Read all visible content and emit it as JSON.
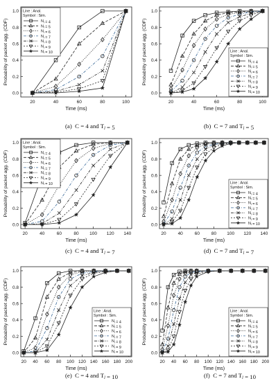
{
  "chart_data": [
    {
      "type": "line",
      "caption": {
        "prefix": "(a)",
        "text": "C = 4 and T_l = 5"
      },
      "ylabel": "Probability of packet agg. (CDF)",
      "xlabel": "Time (ms)",
      "xlim": [
        10,
        105
      ],
      "ylim": [
        -0.05,
        1.05
      ],
      "xticks": [
        20,
        40,
        60,
        80,
        100
      ],
      "yticks": [
        0.0,
        0.2,
        0.4,
        0.6,
        0.8,
        1.0
      ],
      "legend": {
        "line_label": "Line : Anal.",
        "symbol_label": "Symbol : Sim.",
        "position": "top-left"
      },
      "x": [
        20,
        40,
        60,
        80,
        100
      ],
      "series": [
        {
          "name": "N_l = 4",
          "marker": "square",
          "dash": "solid",
          "values": [
            0.0,
            0.4,
            0.8,
            1.0,
            1.0
          ]
        },
        {
          "name": "N_l = 5",
          "marker": "triangle",
          "dash": "dashed",
          "values": [
            0.0,
            0.17,
            0.6,
            0.85,
            1.0
          ]
        },
        {
          "name": "N_l = 6",
          "marker": "diamond",
          "dash": "dotted",
          "values": [
            0.0,
            0.08,
            0.35,
            0.65,
            1.0
          ]
        },
        {
          "name": "N_l = 7",
          "marker": "circle",
          "dash": "dashdot",
          "values": [
            0.0,
            0.04,
            0.2,
            0.45,
            1.0
          ]
        },
        {
          "name": "N_l = 8",
          "marker": "x",
          "dash": "dashdotdot",
          "values": [
            0.0,
            0.02,
            0.1,
            0.27,
            1.0
          ]
        },
        {
          "name": "N_l = 9",
          "marker": "nabla",
          "dash": "shortdash",
          "values": [
            0.0,
            0.01,
            0.05,
            0.15,
            1.0
          ]
        },
        {
          "name": "N_l = 10",
          "marker": "star",
          "dash": "solid",
          "values": [
            0.0,
            0.0,
            0.02,
            0.06,
            1.0
          ]
        }
      ]
    },
    {
      "type": "line",
      "caption": {
        "prefix": "(b)",
        "text": "C = 7 and T_l = 5"
      },
      "ylabel": "Probability of packet agg. (CDF)",
      "xlabel": "Time (ms)",
      "xlim": [
        10,
        105
      ],
      "ylim": [
        -0.05,
        1.05
      ],
      "xticks": [
        20,
        40,
        60,
        80,
        100
      ],
      "yticks": [
        0.0,
        0.2,
        0.4,
        0.6,
        0.8,
        1.0
      ],
      "legend": {
        "line_label": "Line : Anal.",
        "symbol_label": "Symbol : Sim.",
        "position": "bottom-right"
      },
      "x": [
        20,
        30,
        40,
        50,
        60,
        70,
        80,
        90,
        100
      ],
      "series": [
        {
          "name": "N_l = 4",
          "marker": "square",
          "dash": "solid",
          "values": [
            0.27,
            0.7,
            0.88,
            0.95,
            0.98,
            0.99,
            1.0,
            1.0,
            1.0
          ]
        },
        {
          "name": "N_l = 5",
          "marker": "triangle",
          "dash": "dashed",
          "values": [
            0.1,
            0.45,
            0.72,
            0.88,
            0.95,
            0.98,
            0.99,
            1.0,
            1.0
          ]
        },
        {
          "name": "N_l = 6",
          "marker": "diamond",
          "dash": "dotted",
          "values": [
            0.05,
            0.28,
            0.58,
            0.78,
            0.9,
            0.96,
            0.98,
            0.99,
            1.0
          ]
        },
        {
          "name": "N_l = 7",
          "marker": "circle",
          "dash": "dashdot",
          "values": [
            0.02,
            0.15,
            0.4,
            0.66,
            0.82,
            0.92,
            0.96,
            0.99,
            1.0
          ]
        },
        {
          "name": "N_l = 8",
          "marker": "x",
          "dash": "dashdotdot",
          "values": [
            0.0,
            0.07,
            0.25,
            0.5,
            0.72,
            0.86,
            0.93,
            0.97,
            1.0
          ]
        },
        {
          "name": "N_l = 9",
          "marker": "nabla",
          "dash": "shortdash",
          "values": [
            0.0,
            0.03,
            0.12,
            0.32,
            0.55,
            0.75,
            0.88,
            0.95,
            1.0
          ]
        },
        {
          "name": "N_l = 10",
          "marker": "star",
          "dash": "solid",
          "values": [
            0.0,
            0.01,
            0.05,
            0.18,
            0.38,
            0.6,
            0.78,
            0.9,
            1.0
          ]
        }
      ]
    },
    {
      "type": "line",
      "caption": {
        "prefix": "(c)",
        "text": "C = 4 and T_l = 7"
      },
      "ylabel": "Probability of packet agg. (CDF)",
      "xlabel": "Time (ms)",
      "xlim": [
        15,
        145
      ],
      "ylim": [
        -0.05,
        1.05
      ],
      "xticks": [
        20,
        40,
        60,
        80,
        100,
        120,
        140
      ],
      "yticks": [
        0.0,
        0.2,
        0.4,
        0.6,
        0.8,
        1.0
      ],
      "legend": {
        "line_label": "Line : Anal.",
        "symbol_label": "Symbol : Sim.",
        "position": "top-left"
      },
      "x": [
        20,
        40,
        60,
        80,
        100,
        120,
        140
      ],
      "series": [
        {
          "name": "N_l = 4",
          "marker": "square",
          "dash": "solid",
          "values": [
            0.02,
            0.6,
            0.88,
            0.97,
            1.0,
            1.0,
            1.0
          ]
        },
        {
          "name": "N_l = 5",
          "marker": "triangle",
          "dash": "dashed",
          "values": [
            0.0,
            0.3,
            0.7,
            0.9,
            0.98,
            1.0,
            1.0
          ]
        },
        {
          "name": "N_l = 6",
          "marker": "diamond",
          "dash": "dotted",
          "values": [
            0.0,
            0.12,
            0.48,
            0.78,
            0.93,
            0.99,
            1.0
          ]
        },
        {
          "name": "N_l = 7",
          "marker": "circle",
          "dash": "dashdot",
          "values": [
            0.0,
            0.04,
            0.28,
            0.6,
            0.85,
            0.97,
            1.0
          ]
        },
        {
          "name": "N_l = 8",
          "marker": "x",
          "dash": "dashdotdot",
          "values": [
            0.0,
            0.01,
            0.14,
            0.42,
            0.72,
            0.92,
            1.0
          ]
        },
        {
          "name": "N_l = 9",
          "marker": "nabla",
          "dash": "shortdash",
          "values": [
            0.0,
            0.0,
            0.06,
            0.25,
            0.55,
            0.84,
            1.0
          ]
        },
        {
          "name": "N_l = 10",
          "marker": "star",
          "dash": "solid",
          "values": [
            0.0,
            0.0,
            0.02,
            0.12,
            0.36,
            0.7,
            1.0
          ]
        }
      ]
    },
    {
      "type": "line",
      "caption": {
        "prefix": "(d)",
        "text": "C = 7 and T_l = 7"
      },
      "ylabel": "Probability of packet agg. (CDF)",
      "xlabel": "Time (ms)",
      "xlim": [
        15,
        145
      ],
      "ylim": [
        -0.05,
        1.05
      ],
      "xticks": [
        20,
        40,
        60,
        80,
        100,
        120,
        140
      ],
      "yticks": [
        0.0,
        0.2,
        0.4,
        0.6,
        0.8,
        1.0
      ],
      "legend": {
        "line_label": "Line : Anal.",
        "symbol_label": "Symbol : Sim.",
        "position": "bottom-right"
      },
      "x": [
        20,
        30,
        40,
        50,
        60,
        70,
        80,
        90,
        100,
        110,
        120,
        130,
        140
      ],
      "series": [
        {
          "name": "N_l = 4",
          "marker": "square",
          "dash": "solid",
          "values": [
            0.27,
            0.75,
            0.92,
            0.97,
            0.99,
            1.0,
            1.0,
            1.0,
            1.0,
            1.0,
            1.0,
            1.0,
            1.0
          ]
        },
        {
          "name": "N_l = 5",
          "marker": "triangle",
          "dash": "dashed",
          "values": [
            0.1,
            0.5,
            0.8,
            0.92,
            0.97,
            0.99,
            1.0,
            1.0,
            1.0,
            1.0,
            1.0,
            1.0,
            1.0
          ]
        },
        {
          "name": "N_l = 6",
          "marker": "diamond",
          "dash": "dotted",
          "values": [
            0.04,
            0.3,
            0.62,
            0.84,
            0.94,
            0.98,
            0.99,
            1.0,
            1.0,
            1.0,
            1.0,
            1.0,
            1.0
          ]
        },
        {
          "name": "N_l = 7",
          "marker": "circle",
          "dash": "dashdot",
          "values": [
            0.01,
            0.16,
            0.45,
            0.72,
            0.88,
            0.95,
            0.98,
            0.99,
            1.0,
            1.0,
            1.0,
            1.0,
            1.0
          ]
        },
        {
          "name": "N_l = 8",
          "marker": "x",
          "dash": "dashdotdot",
          "values": [
            0.0,
            0.07,
            0.3,
            0.6,
            0.8,
            0.92,
            0.97,
            0.99,
            1.0,
            1.0,
            1.0,
            1.0,
            1.0
          ]
        },
        {
          "name": "N_l = 9",
          "marker": "nabla",
          "dash": "shortdash",
          "values": [
            0.0,
            0.03,
            0.17,
            0.45,
            0.7,
            0.86,
            0.94,
            0.98,
            0.99,
            1.0,
            1.0,
            1.0,
            1.0
          ]
        },
        {
          "name": "N_l = 10",
          "marker": "star",
          "dash": "solid",
          "values": [
            0.0,
            0.01,
            0.08,
            0.3,
            0.58,
            0.78,
            0.9,
            0.96,
            0.99,
            1.0,
            1.0,
            1.0,
            1.0
          ]
        }
      ]
    },
    {
      "type": "line",
      "caption": {
        "prefix": "(e)",
        "text": "C = 4 and T_l = 10"
      },
      "ylabel": "Probability of packet agg. (CDF)",
      "xlabel": "Time (ms)",
      "xlim": [
        15,
        205
      ],
      "ylim": [
        -0.05,
        1.05
      ],
      "xticks": [
        20,
        40,
        60,
        80,
        100,
        120,
        140,
        160,
        180,
        200
      ],
      "yticks": [
        0.0,
        0.2,
        0.4,
        0.6,
        0.8,
        1.0
      ],
      "legend": {
        "line_label": "Line : Anal.",
        "symbol_label": "Symbol : Sim.",
        "position": "bottom-right"
      },
      "x": [
        20,
        40,
        60,
        80,
        100,
        120,
        140,
        160,
        180,
        200
      ],
      "series": [
        {
          "name": "N_l = 4",
          "marker": "square",
          "dash": "solid",
          "values": [
            0.02,
            0.42,
            0.85,
            0.97,
            1.0,
            1.0,
            1.0,
            1.0,
            1.0,
            1.0
          ]
        },
        {
          "name": "N_l = 5",
          "marker": "triangle",
          "dash": "dashed",
          "values": [
            0.0,
            0.18,
            0.68,
            0.9,
            0.98,
            1.0,
            1.0,
            1.0,
            1.0,
            1.0
          ]
        },
        {
          "name": "N_l = 6",
          "marker": "diamond",
          "dash": "dotted",
          "values": [
            0.0,
            0.06,
            0.47,
            0.8,
            0.95,
            0.99,
            1.0,
            1.0,
            1.0,
            1.0
          ]
        },
        {
          "name": "N_l = 7",
          "marker": "circle",
          "dash": "dashdot",
          "values": [
            0.0,
            0.02,
            0.3,
            0.68,
            0.9,
            0.97,
            0.99,
            1.0,
            1.0,
            1.0
          ]
        },
        {
          "name": "N_l = 8",
          "marker": "x",
          "dash": "dashdotdot",
          "values": [
            0.0,
            0.0,
            0.16,
            0.52,
            0.82,
            0.94,
            0.98,
            1.0,
            1.0,
            1.0
          ]
        },
        {
          "name": "N_l = 9",
          "marker": "nabla",
          "dash": "shortdash",
          "values": [
            0.0,
            0.0,
            0.08,
            0.36,
            0.7,
            0.9,
            0.97,
            0.99,
            1.0,
            1.0
          ]
        },
        {
          "name": "N_l = 10",
          "marker": "star",
          "dash": "solid",
          "values": [
            0.0,
            0.0,
            0.03,
            0.22,
            0.55,
            0.8,
            0.93,
            0.98,
            1.0,
            1.0
          ]
        }
      ]
    },
    {
      "type": "line",
      "caption": {
        "prefix": "(f)",
        "text": "C = 7 and T_l = 10"
      },
      "ylabel": "Probability of packet agg. (CDF)",
      "xlabel": "Time (ms)",
      "xlim": [
        15,
        205
      ],
      "ylim": [
        -0.05,
        1.05
      ],
      "xticks": [
        20,
        40,
        60,
        80,
        100,
        120,
        140,
        160,
        180,
        200
      ],
      "yticks": [
        0.0,
        0.2,
        0.4,
        0.6,
        0.8,
        1.0
      ],
      "legend": {
        "line_label": "Line : Anal.",
        "symbol_label": "Symbol : Sim.",
        "position": "bottom-right"
      },
      "x": [
        20,
        30,
        40,
        50,
        60,
        70,
        80,
        100,
        120,
        140,
        160,
        180,
        200
      ],
      "series": [
        {
          "name": "N_l = 4",
          "marker": "square",
          "dash": "solid",
          "values": [
            0.27,
            0.8,
            0.95,
            0.99,
            1.0,
            1.0,
            1.0,
            1.0,
            1.0,
            1.0,
            1.0,
            1.0,
            1.0
          ]
        },
        {
          "name": "N_l = 5",
          "marker": "triangle",
          "dash": "dashed",
          "values": [
            0.1,
            0.55,
            0.85,
            0.96,
            0.99,
            1.0,
            1.0,
            1.0,
            1.0,
            1.0,
            1.0,
            1.0,
            1.0
          ]
        },
        {
          "name": "N_l = 6",
          "marker": "diamond",
          "dash": "dotted",
          "values": [
            0.04,
            0.33,
            0.7,
            0.9,
            0.97,
            0.99,
            1.0,
            1.0,
            1.0,
            1.0,
            1.0,
            1.0,
            1.0
          ]
        },
        {
          "name": "N_l = 7",
          "marker": "circle",
          "dash": "dashdot",
          "values": [
            0.01,
            0.17,
            0.52,
            0.8,
            0.93,
            0.98,
            0.99,
            1.0,
            1.0,
            1.0,
            1.0,
            1.0,
            1.0
          ]
        },
        {
          "name": "N_l = 8",
          "marker": "x",
          "dash": "dashdotdot",
          "values": [
            0.0,
            0.08,
            0.35,
            0.66,
            0.86,
            0.95,
            0.98,
            1.0,
            1.0,
            1.0,
            1.0,
            1.0,
            1.0
          ]
        },
        {
          "name": "N_l = 9",
          "marker": "nabla",
          "dash": "shortdash",
          "values": [
            0.0,
            0.03,
            0.2,
            0.5,
            0.76,
            0.9,
            0.96,
            0.99,
            1.0,
            1.0,
            1.0,
            1.0,
            1.0
          ]
        },
        {
          "name": "N_l = 10",
          "marker": "star",
          "dash": "solid",
          "values": [
            0.0,
            0.01,
            0.1,
            0.34,
            0.62,
            0.82,
            0.93,
            0.99,
            1.0,
            1.0,
            1.0,
            1.0,
            1.0
          ]
        }
      ]
    }
  ]
}
